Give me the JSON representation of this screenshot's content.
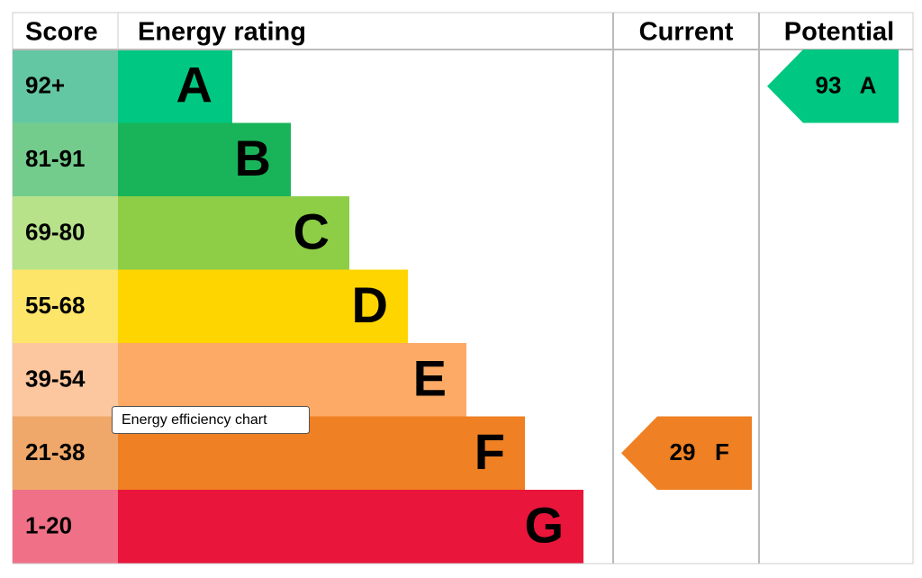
{
  "headers": [
    "Score",
    "Energy rating",
    "Current",
    "Potential"
  ],
  "bands": [
    {
      "score": "92+",
      "letter": "A",
      "color": "#00c781",
      "score_color": "#64c7a3"
    },
    {
      "score": "81-91",
      "letter": "B",
      "color": "#19b459",
      "score_color": "#73cc8c"
    },
    {
      "score": "69-80",
      "letter": "C",
      "color": "#8dce46",
      "score_color": "#b7e28a"
    },
    {
      "score": "55-68",
      "letter": "D",
      "color": "#ffd500",
      "score_color": "#fde56a"
    },
    {
      "score": "39-54",
      "letter": "E",
      "color": "#fcaa65",
      "score_color": "#fcc69e"
    },
    {
      "score": "21-38",
      "letter": "F",
      "color": "#ef8023",
      "score_color": "#f0a86a"
    },
    {
      "score": "1-20",
      "letter": "G",
      "color": "#e9153b",
      "score_color": "#f07187"
    }
  ],
  "current": {
    "value": 29,
    "letter": "F"
  },
  "potential": {
    "value": 93,
    "letter": "A"
  },
  "tooltip": "Energy efficiency chart"
}
